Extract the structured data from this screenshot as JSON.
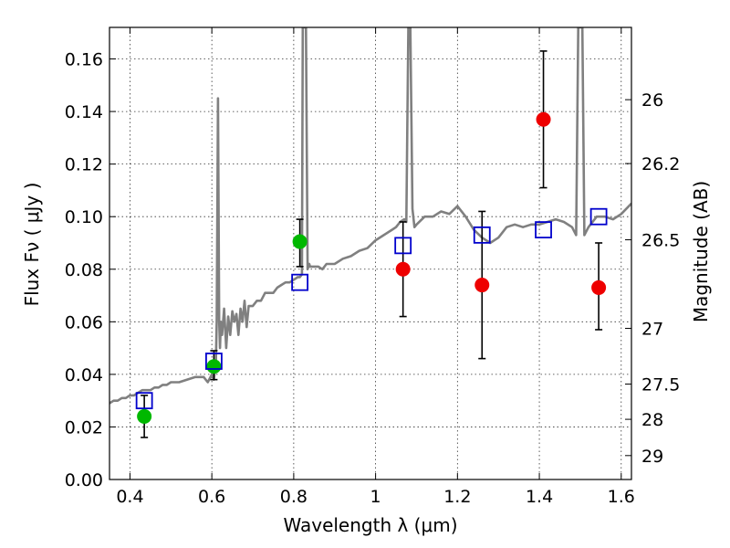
{
  "chart_data": {
    "type": "scatter",
    "title": "",
    "xlabel": "Wavelength  λ (μm)",
    "ylabel": "Flux  Fν  ( μJy )",
    "y2label": "Magnitude (AB)",
    "xlim": [
      0.35,
      1.625
    ],
    "ylim": [
      0.0,
      0.172
    ],
    "grid": true,
    "x_ticks": [
      0.4,
      0.6,
      0.8,
      1.0,
      1.2,
      1.4,
      1.6
    ],
    "x_tick_labels": [
      "0.4",
      "0.6",
      "0.8",
      "1",
      "1.2",
      "1.4",
      "1.6"
    ],
    "y_ticks": [
      0.0,
      0.02,
      0.04,
      0.06,
      0.08,
      0.1,
      0.12,
      0.14,
      0.16
    ],
    "y_tick_labels": [
      "0.00",
      "0.02",
      "0.04",
      "0.06",
      "0.08",
      "0.10",
      "0.12",
      "0.14",
      "0.16"
    ],
    "y2_ticks": [
      {
        "label": "26",
        "flux": 0.1445
      },
      {
        "label": "26.2",
        "flux": 0.1202
      },
      {
        "label": "26.5",
        "flux": 0.0912
      },
      {
        "label": "27",
        "flux": 0.0575
      },
      {
        "label": "27.5",
        "flux": 0.0363
      },
      {
        "label": "28",
        "flux": 0.0229
      },
      {
        "label": "29",
        "flux": 0.0091
      }
    ],
    "series": [
      {
        "kind": "line",
        "color": "#808080",
        "x": [
          0.35,
          0.36,
          0.37,
          0.38,
          0.39,
          0.4,
          0.41,
          0.42,
          0.43,
          0.44,
          0.45,
          0.46,
          0.47,
          0.48,
          0.49,
          0.5,
          0.52,
          0.54,
          0.56,
          0.58,
          0.59,
          0.6,
          0.605,
          0.61,
          0.612,
          0.615,
          0.618,
          0.62,
          0.622,
          0.625,
          0.63,
          0.635,
          0.64,
          0.645,
          0.65,
          0.655,
          0.66,
          0.665,
          0.67,
          0.675,
          0.68,
          0.685,
          0.69,
          0.7,
          0.71,
          0.72,
          0.73,
          0.74,
          0.75,
          0.76,
          0.77,
          0.78,
          0.79,
          0.8,
          0.81,
          0.815,
          0.82,
          0.822,
          0.826,
          0.83,
          0.834,
          0.838,
          0.84,
          0.85,
          0.86,
          0.87,
          0.88,
          0.9,
          0.92,
          0.94,
          0.96,
          0.98,
          1.0,
          1.02,
          1.04,
          1.05,
          1.06,
          1.07,
          1.075,
          1.08,
          1.082,
          1.085,
          1.09,
          1.095,
          1.1,
          1.12,
          1.14,
          1.16,
          1.18,
          1.2,
          1.22,
          1.24,
          1.26,
          1.28,
          1.3,
          1.32,
          1.34,
          1.36,
          1.38,
          1.4,
          1.42,
          1.44,
          1.46,
          1.48,
          1.49,
          1.495,
          1.5,
          1.505,
          1.51,
          1.52,
          1.53,
          1.54,
          1.56,
          1.58,
          1.6,
          1.625
        ],
        "y": [
          0.029,
          0.03,
          0.03,
          0.031,
          0.031,
          0.032,
          0.032,
          0.033,
          0.034,
          0.034,
          0.034,
          0.035,
          0.035,
          0.036,
          0.036,
          0.037,
          0.037,
          0.038,
          0.039,
          0.039,
          0.037,
          0.04,
          0.038,
          0.045,
          0.06,
          0.145,
          0.06,
          0.05,
          0.06,
          0.055,
          0.065,
          0.05,
          0.062,
          0.055,
          0.064,
          0.06,
          0.063,
          0.055,
          0.065,
          0.06,
          0.068,
          0.058,
          0.066,
          0.066,
          0.068,
          0.068,
          0.071,
          0.071,
          0.071,
          0.073,
          0.074,
          0.075,
          0.075,
          0.076,
          0.077,
          0.077,
          0.078,
          0.172,
          0.172,
          0.172,
          0.08,
          0.082,
          0.081,
          0.081,
          0.081,
          0.08,
          0.082,
          0.082,
          0.084,
          0.085,
          0.087,
          0.088,
          0.091,
          0.093,
          0.095,
          0.096,
          0.098,
          0.099,
          0.098,
          0.172,
          0.172,
          0.172,
          0.103,
          0.096,
          0.097,
          0.1,
          0.1,
          0.102,
          0.101,
          0.104,
          0.1,
          0.095,
          0.092,
          0.09,
          0.092,
          0.096,
          0.097,
          0.096,
          0.097,
          0.097,
          0.098,
          0.099,
          0.098,
          0.096,
          0.093,
          0.172,
          0.172,
          0.172,
          0.093,
          0.096,
          0.098,
          0.1,
          0.1,
          0.099,
          0.101,
          0.105
        ]
      },
      {
        "kind": "scatter",
        "name": "",
        "marker": "circle",
        "color": "#00b800",
        "points": [
          {
            "x": 0.435,
            "y": 0.024,
            "yerr_lo": 0.016,
            "yerr_hi": 0.032
          },
          {
            "x": 0.605,
            "y": 0.043,
            "yerr_lo": 0.038,
            "yerr_hi": 0.049
          },
          {
            "x": 0.815,
            "y": 0.0905,
            "yerr_lo": 0.081,
            "yerr_hi": 0.099
          }
        ]
      },
      {
        "kind": "scatter",
        "name": "",
        "marker": "circle",
        "color": "#ee0000",
        "points": [
          {
            "x": 1.067,
            "y": 0.08,
            "yerr_lo": 0.062,
            "yerr_hi": 0.098
          },
          {
            "x": 1.26,
            "y": 0.074,
            "yerr_lo": 0.046,
            "yerr_hi": 0.102
          },
          {
            "x": 1.41,
            "y": 0.137,
            "yerr_lo": 0.111,
            "yerr_hi": 0.163
          },
          {
            "x": 1.545,
            "y": 0.073,
            "yerr_lo": 0.057,
            "yerr_hi": 0.09
          }
        ]
      },
      {
        "kind": "scatter",
        "name": "",
        "marker": "square-open",
        "color": "#0000cc",
        "points": [
          {
            "x": 0.435,
            "y": 0.03
          },
          {
            "x": 0.605,
            "y": 0.045
          },
          {
            "x": 0.815,
            "y": 0.075
          },
          {
            "x": 1.067,
            "y": 0.089
          },
          {
            "x": 1.26,
            "y": 0.093
          },
          {
            "x": 1.41,
            "y": 0.095
          },
          {
            "x": 1.545,
            "y": 0.1
          }
        ]
      }
    ]
  }
}
